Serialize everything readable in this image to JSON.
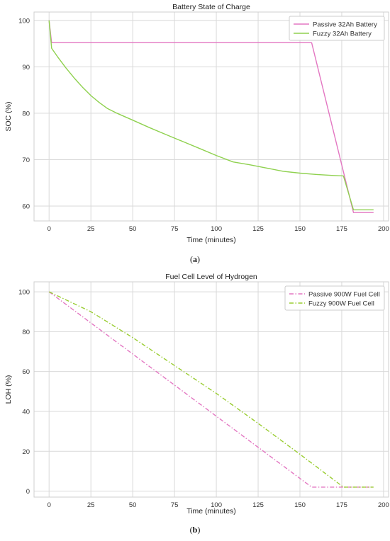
{
  "chart_data": [
    {
      "type": "line",
      "title": "Battery State of Charge",
      "xlabel": "Time (minutes)",
      "ylabel": "SOC (%)",
      "xlim": [
        -9,
        203
      ],
      "ylim": [
        56.8,
        101.8
      ],
      "xticks": [
        0,
        25,
        50,
        75,
        100,
        125,
        150,
        175,
        200
      ],
      "yticks": [
        60,
        70,
        80,
        90,
        100
      ],
      "grid": true,
      "legend": "top-right",
      "caption_label": "a",
      "series": [
        {
          "name": "Passive 32Ah Battery",
          "color": "#e377c2",
          "style": "solid",
          "x": [
            0,
            1.5,
            157,
            182,
            194
          ],
          "y": [
            100,
            95.2,
            95.2,
            58.6,
            58.6
          ]
        },
        {
          "name": "Fuzzy 32Ah Battery",
          "color": "#8fd14f",
          "style": "solid",
          "x": [
            0,
            1.5,
            5,
            10,
            15,
            20,
            25,
            30,
            35,
            40,
            50,
            60,
            70,
            80,
            90,
            100,
            110,
            120,
            130,
            140,
            150,
            160,
            170,
            176,
            182,
            194
          ],
          "y": [
            100,
            94,
            92.2,
            89.8,
            87.6,
            85.6,
            83.8,
            82.3,
            81,
            80.1,
            78.5,
            76.9,
            75.4,
            73.9,
            72.4,
            70.9,
            69.5,
            68.9,
            68.2,
            67.5,
            67.1,
            66.8,
            66.6,
            66.5,
            59.2,
            59.2
          ]
        }
      ]
    },
    {
      "type": "line",
      "title": "Fuel Cell Level of Hydrogen",
      "xlabel": "Time (minutes)",
      "ylabel": "LOH (%)",
      "xlim": [
        -9,
        203
      ],
      "ylim": [
        -3,
        105
      ],
      "xticks": [
        0,
        25,
        50,
        75,
        100,
        125,
        150,
        175,
        200
      ],
      "yticks": [
        0,
        20,
        40,
        60,
        80,
        100
      ],
      "grid": true,
      "legend": "top-right",
      "caption_label": "b",
      "series": [
        {
          "name": "Passive 900W Fuel Cell",
          "color": "#e377c2",
          "style": "dashdot",
          "x": [
            0,
            157,
            194
          ],
          "y": [
            100,
            2,
            2
          ]
        },
        {
          "name": "Fuzzy 900W Fuel Cell",
          "color": "#9acd32",
          "style": "dashdot",
          "x": [
            0,
            25,
            50,
            75,
            100,
            125,
            150,
            176,
            194
          ],
          "y": [
            100,
            90,
            77,
            63,
            49,
            34,
            18.5,
            2,
            2
          ]
        }
      ]
    }
  ]
}
